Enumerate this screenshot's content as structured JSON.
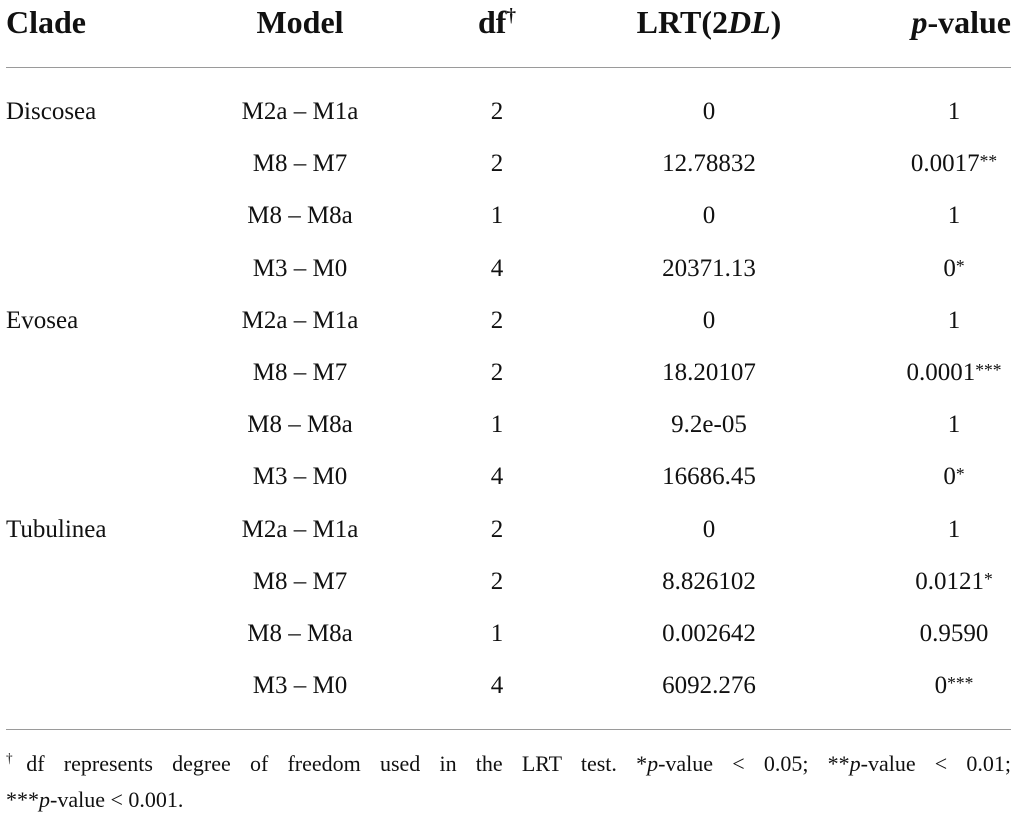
{
  "headers": {
    "clade": "Clade",
    "model": "Model",
    "df": "df",
    "df_mark": "†",
    "lrt_prefix": "LRT(2",
    "lrt_italic": "DL",
    "lrt_suffix": ")",
    "p_italic": "p",
    "p_suffix": "-value"
  },
  "rows": [
    {
      "clade": "Discosea",
      "model": "M2a – M1a",
      "df": "2",
      "lrt": "0",
      "p": "1"
    },
    {
      "clade": "",
      "model": "M8 – M7",
      "df": "2",
      "lrt": "12.78832",
      "p": "0.0017**"
    },
    {
      "clade": "",
      "model": "M8 – M8a",
      "df": "1",
      "lrt": "0",
      "p": "1"
    },
    {
      "clade": "",
      "model": "M3 – M0",
      "df": "4",
      "lrt": "20371.13",
      "p": "0*"
    },
    {
      "clade": "Evosea",
      "model": "M2a – M1a",
      "df": "2",
      "lrt": "0",
      "p": "1"
    },
    {
      "clade": "",
      "model": "M8 – M7",
      "df": "2",
      "lrt": "18.20107",
      "p": "0.0001***"
    },
    {
      "clade": "",
      "model": "M8 – M8a",
      "df": "1",
      "lrt": "9.2e-05",
      "p": "1"
    },
    {
      "clade": "",
      "model": "M3 – M0",
      "df": "4",
      "lrt": "16686.45",
      "p": "0*"
    },
    {
      "clade": "Tubulinea",
      "model": "M2a – M1a",
      "df": "2",
      "lrt": "0",
      "p": "1"
    },
    {
      "clade": "",
      "model": "M8 – M7",
      "df": "2",
      "lrt": "8.826102",
      "p": "0.0121*"
    },
    {
      "clade": "",
      "model": "M8 – M8a",
      "df": "1",
      "lrt": "0.002642",
      "p": "0.9590"
    },
    {
      "clade": "",
      "model": "M3 – M0",
      "df": "4",
      "lrt": "6092.276",
      "p": "0***"
    }
  ],
  "footnote": {
    "dagger": "†",
    "line1_a": "df represents degree of freedom used in the LRT test. *",
    "line1_p1": "p",
    "line1_b": "-value < 0.05; **",
    "line1_p2": "p",
    "line1_c": "-value < 0.01;",
    "line2_a": "***",
    "line2_p": "p",
    "line2_b": "-value < 0.001."
  }
}
